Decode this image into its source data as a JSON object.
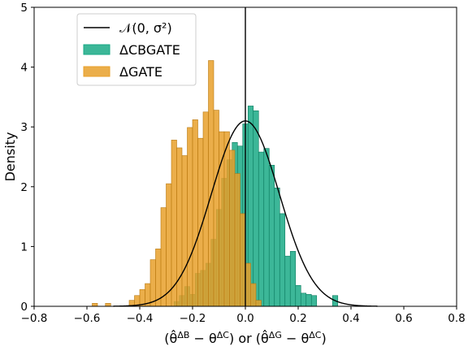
{
  "chart_data": {
    "type": "histogram",
    "xlabel": "(θ̂^{ΔB} − θ^{ΔC}) or (θ̂^{ΔG} − θ^{ΔC})",
    "ylabel": "Density",
    "xlim": [
      -0.8,
      0.8
    ],
    "ylim": [
      0,
      5
    ],
    "xticks": [
      -0.8,
      -0.6,
      -0.4,
      -0.2,
      0.0,
      0.2,
      0.4,
      0.6,
      0.8
    ],
    "xtick_labels": [
      "−0.8",
      "−0.6",
      "−0.4",
      "−0.2",
      "0.0",
      "0.2",
      "0.4",
      "0.6",
      "0.8"
    ],
    "yticks": [
      0,
      1,
      2,
      3,
      4,
      5
    ],
    "ytick_labels": [
      "0",
      "1",
      "2",
      "3",
      "4",
      "5"
    ],
    "vline_x": 0.0,
    "legend_position": "upper-left",
    "legend": [
      {
        "label": "𝒩(0, σ²)",
        "kind": "line",
        "color": "#000000"
      },
      {
        "label": "ΔCBGATE",
        "kind": "patch",
        "color": "#1aaa86"
      },
      {
        "label": "ΔGATE",
        "kind": "patch",
        "color": "#e8a02a"
      }
    ],
    "normal_curve": {
      "mean": 0.0,
      "peak_density": 3.1
    },
    "series": [
      {
        "name": "ΔCBGATE",
        "color": "#1aaa86",
        "edge_color": "#0b7a5e",
        "alpha": 0.85,
        "bins": [
          [
            -0.27,
            -0.25,
            0.08
          ],
          [
            -0.25,
            -0.23,
            0.18
          ],
          [
            -0.23,
            -0.21,
            0.33
          ],
          [
            -0.21,
            -0.19,
            0.2
          ],
          [
            -0.19,
            -0.17,
            0.55
          ],
          [
            -0.17,
            -0.15,
            0.6
          ],
          [
            -0.15,
            -0.13,
            0.72
          ],
          [
            -0.13,
            -0.11,
            1.12
          ],
          [
            -0.11,
            -0.09,
            1.62
          ],
          [
            -0.09,
            -0.07,
            2.14
          ],
          [
            -0.07,
            -0.05,
            2.45
          ],
          [
            -0.05,
            -0.03,
            2.74
          ],
          [
            -0.03,
            -0.01,
            2.68
          ],
          [
            -0.01,
            0.01,
            3.05
          ],
          [
            0.01,
            0.03,
            3.35
          ],
          [
            0.03,
            0.05,
            3.27
          ],
          [
            0.05,
            0.07,
            2.58
          ],
          [
            0.07,
            0.09,
            2.64
          ],
          [
            0.09,
            0.11,
            2.36
          ],
          [
            0.11,
            0.13,
            1.98
          ],
          [
            0.13,
            0.15,
            1.55
          ],
          [
            0.15,
            0.17,
            0.84
          ],
          [
            0.17,
            0.19,
            0.92
          ],
          [
            0.19,
            0.21,
            0.35
          ],
          [
            0.21,
            0.23,
            0.22
          ],
          [
            0.23,
            0.25,
            0.2
          ],
          [
            0.25,
            0.27,
            0.18
          ],
          [
            0.33,
            0.35,
            0.18
          ]
        ]
      },
      {
        "name": "ΔGATE",
        "color": "#e8a02a",
        "edge_color": "#b87912",
        "alpha": 0.85,
        "bins": [
          [
            -0.58,
            -0.56,
            0.05
          ],
          [
            -0.53,
            -0.51,
            0.05
          ],
          [
            -0.44,
            -0.42,
            0.1
          ],
          [
            -0.42,
            -0.4,
            0.18
          ],
          [
            -0.4,
            -0.38,
            0.28
          ],
          [
            -0.38,
            -0.36,
            0.38
          ],
          [
            -0.36,
            -0.34,
            0.78
          ],
          [
            -0.34,
            -0.32,
            0.96
          ],
          [
            -0.32,
            -0.3,
            1.65
          ],
          [
            -0.3,
            -0.28,
            2.05
          ],
          [
            -0.28,
            -0.26,
            2.78
          ],
          [
            -0.26,
            -0.24,
            2.65
          ],
          [
            -0.24,
            -0.22,
            2.52
          ],
          [
            -0.22,
            -0.2,
            2.99
          ],
          [
            -0.2,
            -0.18,
            3.12
          ],
          [
            -0.18,
            -0.16,
            2.81
          ],
          [
            -0.16,
            -0.14,
            3.25
          ],
          [
            -0.14,
            -0.12,
            4.11
          ],
          [
            -0.12,
            -0.1,
            3.28
          ],
          [
            -0.1,
            -0.08,
            2.92
          ],
          [
            -0.08,
            -0.06,
            2.92
          ],
          [
            -0.06,
            -0.04,
            2.61
          ],
          [
            -0.04,
            -0.02,
            2.22
          ],
          [
            -0.02,
            0.0,
            1.55
          ],
          [
            0.0,
            0.02,
            0.72
          ],
          [
            0.02,
            0.04,
            0.38
          ],
          [
            0.04,
            0.06,
            0.1
          ]
        ]
      }
    ]
  }
}
